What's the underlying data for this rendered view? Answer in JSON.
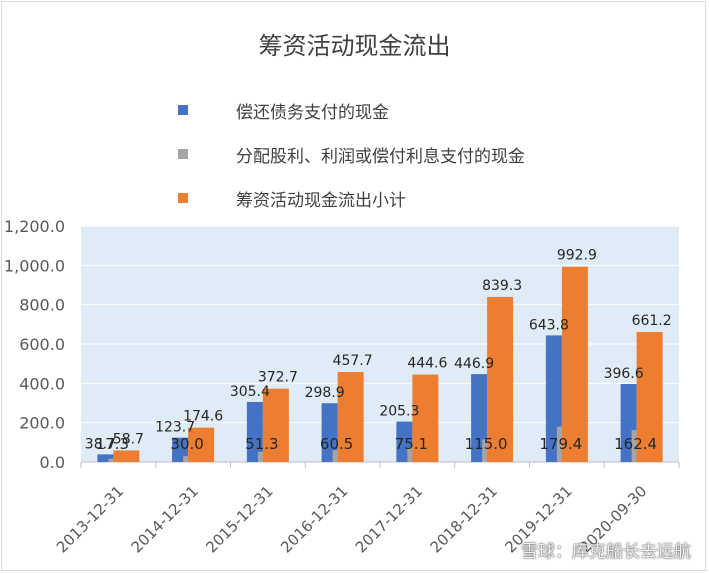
{
  "title": "筹资活动现金流出",
  "legend": [
    {
      "label": "偿还债务支付的现金",
      "color": "#4472c4"
    },
    {
      "label": "分配股利、利润或偿付利息支付的现金",
      "color": "#a5a5a5"
    },
    {
      "label": "筹资活动现金流出小计",
      "color": "#ed7d31"
    }
  ],
  "watermark": "雪球：库克船长去远航",
  "chart_data": {
    "type": "bar",
    "title": "筹资活动现金流出",
    "categories": [
      "2013-12-31",
      "2014-12-31",
      "2015-12-31",
      "2016-12-31",
      "2017-12-31",
      "2018-12-31",
      "2019-12-31",
      "2020-09-30"
    ],
    "series": [
      {
        "name": "偿还债务支付的现金",
        "values": [
          38.7,
          123.7,
          305.4,
          298.9,
          205.3,
          446.9,
          643.8,
          396.6
        ],
        "color": "#4472c4",
        "labels": [
          "38.7",
          "123.7",
          "305.4",
          "298.9",
          "205.3",
          "446.9",
          "643.8",
          "396.6"
        ]
      },
      {
        "name": "分配股利、利润或偿付利息支付的现金",
        "values": [
          17.3,
          30.0,
          51.3,
          60.5,
          75.1,
          115.0,
          179.4,
          162.4
        ],
        "color": "#a5a5a5",
        "labels": [
          "17.3",
          "30.0",
          "51.3",
          "60.5",
          "75.1",
          "115.0",
          "179.4",
          "162.4"
        ]
      },
      {
        "name": "筹资活动现金流出小计",
        "values": [
          58.7,
          174.6,
          372.7,
          457.7,
          444.6,
          839.3,
          992.9,
          661.2
        ],
        "color": "#ed7d31",
        "labels": [
          "58.7",
          "174.6",
          "372.7",
          "457.7",
          "444.6",
          "839.3",
          "992.9",
          "661.2"
        ]
      }
    ],
    "yticks": [
      "0.0",
      "200.0",
      "400.0",
      "600.0",
      "800.0",
      "1,000.0",
      "1,200.0"
    ],
    "ylim": [
      0,
      1200
    ],
    "grid": true,
    "legend_position": "top"
  }
}
